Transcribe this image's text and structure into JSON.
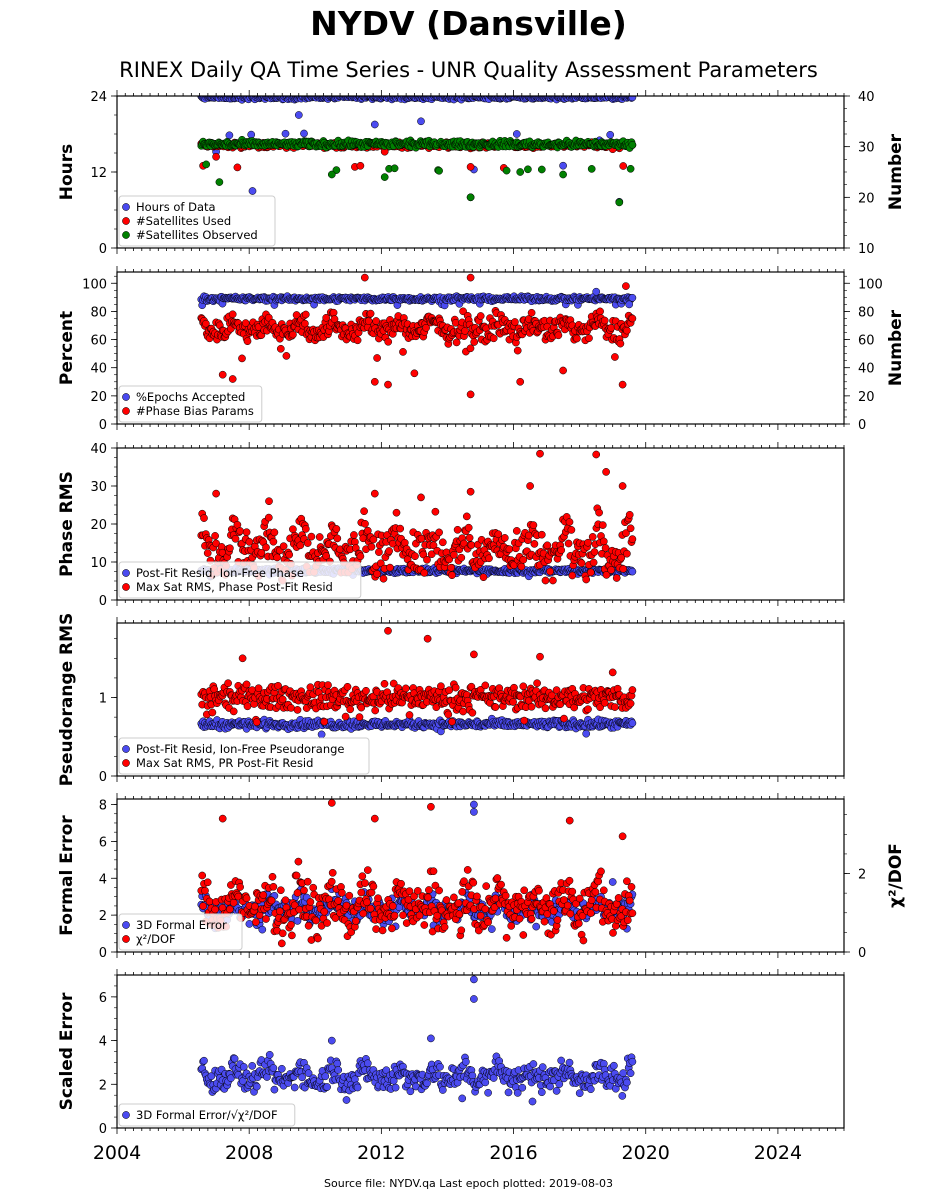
{
  "title": "NYDV (Dansville)",
  "subtitle": "RINEX Daily QA Time Series - UNR Quality Assessment Parameters",
  "footer": "Source file: NYDV.qa Last epoch plotted: 2019-08-03",
  "colors": {
    "blue": "#4b4bf0",
    "red": "#ff0000",
    "green": "#008000",
    "edge": "#000000"
  },
  "chart_data": [
    {
      "type": "scatter",
      "xlim": [
        2004,
        2026
      ],
      "x_ticks": [
        "2004",
        "2008",
        "2012",
        "2016",
        "2020",
        "2024"
      ],
      "ylabel": "Hours",
      "ylim": [
        0,
        24
      ],
      "y_ticks": [
        "0",
        "12",
        "24"
      ],
      "y2label": "Number",
      "y2lim": [
        10,
        40
      ],
      "y2_ticks": [
        "10",
        "20",
        "30",
        "40"
      ],
      "legend_location": "lower-left",
      "series": [
        {
          "name": "Hours of Data",
          "color": "blue",
          "axis": "left",
          "base": 23.8,
          "spread": 0.3,
          "outlier_low": 18,
          "points": [
            [
              2007.0,
              15.2
            ],
            [
              2007.4,
              17.8
            ],
            [
              2008.1,
              9.0
            ],
            [
              2009.5,
              21.0
            ],
            [
              2011.8,
              19.5
            ],
            [
              2013.2,
              20.0
            ],
            [
              2014.7,
              8.0
            ],
            [
              2014.8,
              12.4
            ],
            [
              2016.1,
              18.0
            ],
            [
              2017.5,
              13.0
            ],
            [
              2018.6,
              17.0
            ],
            [
              2019.2,
              7.3
            ]
          ]
        },
        {
          "name": "#Satellites Used",
          "color": "red",
          "axis": "right",
          "base": 30.3,
          "spread": 0.5,
          "outlier_low": 26,
          "points": [
            [
              2007.0,
              28.0
            ],
            [
              2012.1,
              29.0
            ],
            [
              2014.7,
              26.0
            ],
            [
              2019.0,
              29.5
            ]
          ]
        },
        {
          "name": "#Satellites Observed",
          "color": "green",
          "axis": "right",
          "base": 30.5,
          "spread": 0.6,
          "outlier_low": 25.5,
          "points": [
            [
              2006.7,
              26.5
            ],
            [
              2007.1,
              23.0
            ],
            [
              2010.5,
              24.5
            ],
            [
              2012.1,
              24.0
            ],
            [
              2014.7,
              20.0
            ],
            [
              2016.2,
              25.0
            ],
            [
              2017.5,
              24.5
            ],
            [
              2019.2,
              19.0
            ]
          ]
        }
      ]
    },
    {
      "type": "scatter",
      "xlim": [
        2004,
        2026
      ],
      "x_ticks": [
        "2004",
        "2008",
        "2012",
        "2016",
        "2020",
        "2024"
      ],
      "ylabel": "Percent",
      "ylim": [
        0,
        108
      ],
      "y_ticks": [
        "0",
        "20",
        "40",
        "60",
        "80",
        "100"
      ],
      "y2label": "Number",
      "y2lim": [
        0,
        108
      ],
      "y2_ticks": [
        "0",
        "20",
        "40",
        "60",
        "80",
        "100"
      ],
      "legend_location": "lower-left",
      "series": [
        {
          "name": "%Epochs Accepted",
          "color": "blue",
          "axis": "left",
          "base": 89,
          "spread": 1.5,
          "outlier_low": 85,
          "points": [
            [
              2018.5,
              94
            ],
            [
              2019.5,
              85
            ]
          ]
        },
        {
          "name": "#Phase Bias Params",
          "color": "red",
          "axis": "right",
          "base": 66,
          "spread": 8,
          "outlier_low": 50,
          "points": [
            [
              2007.2,
              35
            ],
            [
              2007.5,
              32
            ],
            [
              2011.8,
              30
            ],
            [
              2012.2,
              28
            ],
            [
              2013.0,
              36
            ],
            [
              2014.7,
              21
            ],
            [
              2014.7,
              104
            ],
            [
              2011.5,
              104
            ],
            [
              2016.2,
              30
            ],
            [
              2017.5,
              38
            ],
            [
              2019.3,
              28
            ],
            [
              2019.4,
              98
            ]
          ]
        }
      ]
    },
    {
      "type": "scatter",
      "xlim": [
        2004,
        2026
      ],
      "x_ticks": [
        "2004",
        "2008",
        "2012",
        "2016",
        "2020",
        "2024"
      ],
      "ylabel": "Phase RMS",
      "ylim": [
        0,
        40
      ],
      "y_ticks": [
        "0",
        "10",
        "20",
        "30",
        "40"
      ],
      "legend_location": "lower-left",
      "series": [
        {
          "name": "Post-Fit Resid, Ion-Free Phase",
          "color": "blue",
          "axis": "left",
          "base": 7.7,
          "spread": 0.7,
          "outlier_low": 6.5,
          "points": []
        },
        {
          "name": "Max Sat RMS, Phase Post-Fit Resid",
          "color": "red",
          "axis": "left",
          "base": 12,
          "spread": 6,
          "outlier_low": 8,
          "points": [
            [
              2007.0,
              28
            ],
            [
              2008.6,
              26
            ],
            [
              2011.8,
              28
            ],
            [
              2013.2,
              27
            ],
            [
              2014.7,
              28.5
            ],
            [
              2016.5,
              30
            ],
            [
              2016.8,
              38.5
            ],
            [
              2018.5,
              38.3
            ],
            [
              2018.8,
              33.7
            ],
            [
              2019.3,
              30
            ]
          ]
        }
      ]
    },
    {
      "type": "scatter",
      "xlim": [
        2004,
        2026
      ],
      "x_ticks": [
        "2004",
        "2008",
        "2012",
        "2016",
        "2020",
        "2024"
      ],
      "ylabel": "Pseudorange RMS",
      "ylim": [
        0,
        1.95
      ],
      "y_ticks": [
        "0",
        "1"
      ],
      "legend_location": "lower-left",
      "series": [
        {
          "name": "Post-Fit Resid, Ion-Free Pseudorange",
          "color": "blue",
          "axis": "left",
          "base": 0.66,
          "spread": 0.05,
          "outlier_low": 0.55,
          "points": []
        },
        {
          "name": "Max Sat RMS, PR Post-Fit Resid",
          "color": "red",
          "axis": "left",
          "base": 1.0,
          "spread": 0.15,
          "outlier_low": 0.75,
          "points": [
            [
              2007.8,
              1.5
            ],
            [
              2012.2,
              1.85
            ],
            [
              2013.4,
              1.75
            ],
            [
              2014.8,
              1.55
            ],
            [
              2016.8,
              1.52
            ],
            [
              2019.0,
              1.32
            ]
          ]
        }
      ]
    },
    {
      "type": "scatter",
      "xlim": [
        2004,
        2026
      ],
      "x_ticks": [
        "2004",
        "2008",
        "2012",
        "2016",
        "2020",
        "2024"
      ],
      "ylabel": "Formal Error",
      "ylim": [
        0,
        8.3
      ],
      "y_ticks": [
        "0",
        "2",
        "4",
        "6",
        "8"
      ],
      "y2label": "χ²/DOF",
      "y2lim": [
        0,
        3.9
      ],
      "y2_ticks": [
        "0",
        "2"
      ],
      "legend_location": "lower-left",
      "series": [
        {
          "name": "3D Formal Error",
          "color": "blue",
          "axis": "left",
          "base": 2.2,
          "spread": 0.6,
          "outlier_low": 1.5,
          "points": [
            [
              2014.8,
              8.0
            ],
            [
              2014.8,
              7.6
            ],
            [
              2019.0,
              3.8
            ]
          ]
        },
        {
          "name": "χ²/DOF",
          "color": "red",
          "axis": "right",
          "base": 1.0,
          "spread": 0.6,
          "outlier_low": 0.7,
          "points": [
            [
              2007.2,
              3.4
            ],
            [
              2010.5,
              3.8
            ],
            [
              2011.8,
              3.4
            ],
            [
              2013.5,
              3.7
            ],
            [
              2017.7,
              3.35
            ],
            [
              2019.3,
              2.95
            ]
          ]
        }
      ]
    },
    {
      "type": "scatter",
      "xlim": [
        2004,
        2026
      ],
      "x_ticks": [
        "2004",
        "2008",
        "2012",
        "2016",
        "2020",
        "2024"
      ],
      "ylabel": "Scaled Error",
      "ylim": [
        0,
        7
      ],
      "y_ticks": [
        "0",
        "2",
        "4",
        "6"
      ],
      "legend_location": "lower-left",
      "series": [
        {
          "name": "3D Formal Error/√χ²/DOF",
          "color": "blue",
          "axis": "left",
          "base": 2.2,
          "spread": 0.6,
          "outlier_low": 1.5,
          "points": [
            [
              2014.8,
              6.8
            ],
            [
              2014.8,
              5.9
            ],
            [
              2010.5,
              4.0
            ],
            [
              2013.5,
              4.1
            ]
          ]
        }
      ]
    }
  ]
}
